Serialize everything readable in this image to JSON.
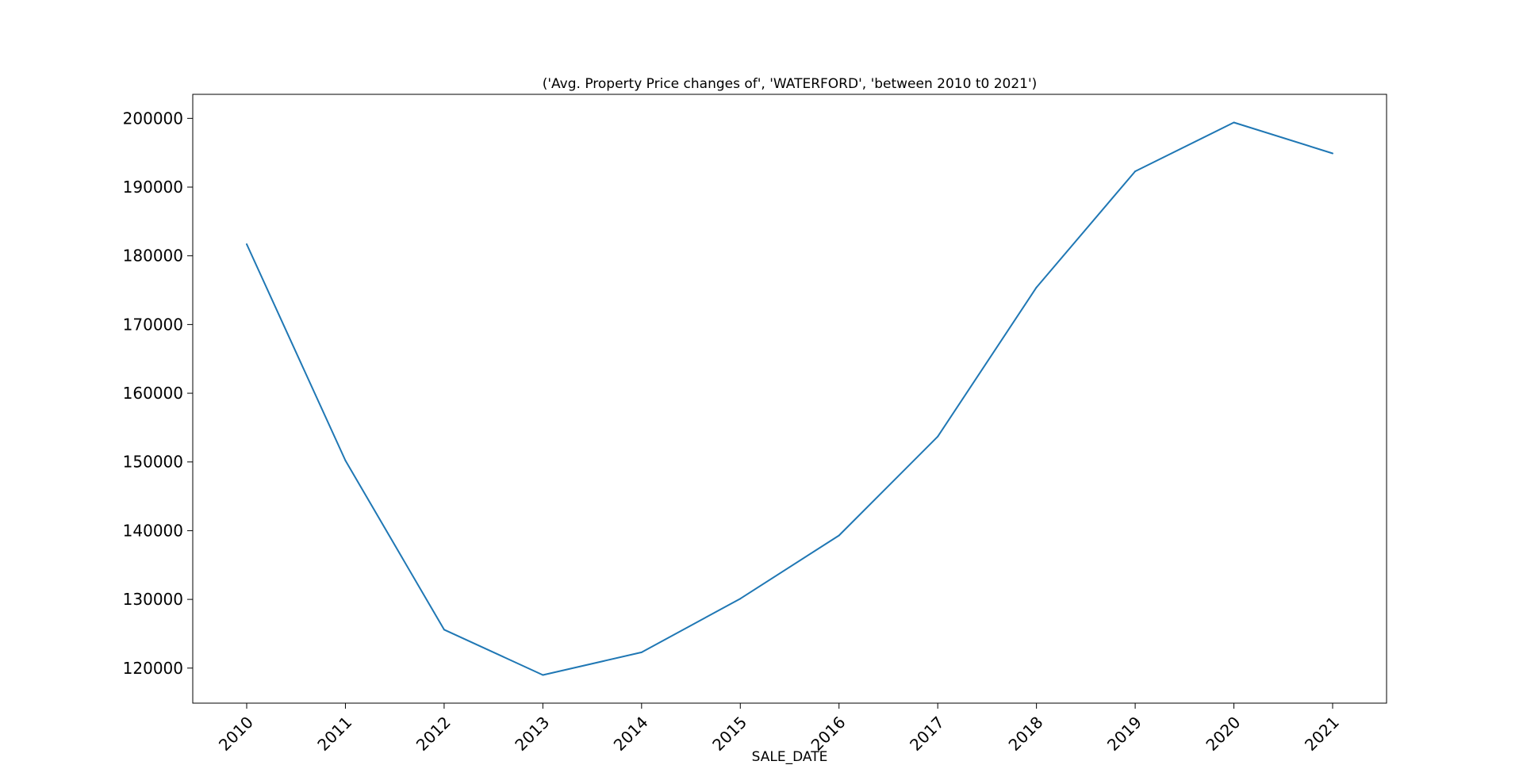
{
  "chart_data": {
    "type": "line",
    "title": "('Avg. Property Price changes of', 'WATERFORD', 'between 2010 t0 2021')",
    "xlabel": "SALE_DATE",
    "ylabel": "",
    "x": [
      "2010",
      "2011",
      "2012",
      "2013",
      "2014",
      "2015",
      "2016",
      "2017",
      "2018",
      "2019",
      "2020",
      "2021"
    ],
    "series": [
      {
        "values": [
          181700,
          150200,
          125600,
          119000,
          122300,
          130100,
          139300,
          153700,
          175400,
          192300,
          199400,
          194900
        ],
        "color": "#1f77b4"
      }
    ],
    "yticks": [
      120000,
      130000,
      140000,
      150000,
      160000,
      170000,
      180000,
      190000,
      200000
    ],
    "ylim": [
      114900,
      203500
    ],
    "grid": false,
    "legend": "none"
  }
}
